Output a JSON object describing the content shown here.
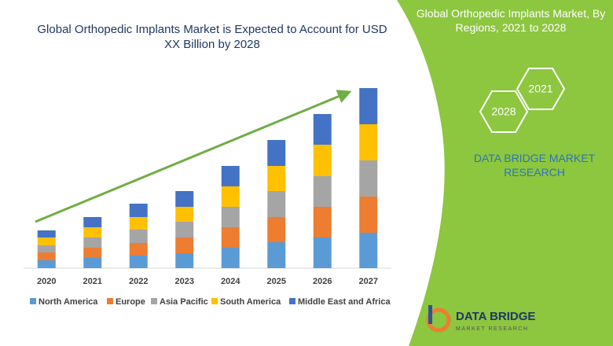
{
  "chart_data": {
    "type": "bar",
    "stacked": true,
    "title": "Global Orthopedic Implants Market is Expected to Account for USD XX Billion by 2028",
    "categories": [
      "2020",
      "2021",
      "2022",
      "2023",
      "2024",
      "2025",
      "2026",
      "2027"
    ],
    "series": [
      {
        "name": "North America",
        "color": "#5b9bd5",
        "values": [
          10,
          13,
          16,
          19,
          26,
          33,
          39,
          45
        ]
      },
      {
        "name": "Europe",
        "color": "#ed7d31",
        "values": [
          10,
          13,
          16,
          20,
          26,
          32,
          39,
          46
        ]
      },
      {
        "name": "Asia Pacific",
        "color": "#a5a5a5",
        "values": [
          9,
          13,
          17,
          20,
          26,
          33,
          39,
          46
        ]
      },
      {
        "name": "South America",
        "color": "#ffc000",
        "values": [
          10,
          13,
          16,
          19,
          26,
          32,
          40,
          46
        ]
      },
      {
        "name": "Middle East and Africa",
        "color": "#4472c4",
        "values": [
          9,
          13,
          17,
          20,
          26,
          33,
          39,
          46
        ]
      }
    ],
    "ylim": [
      0,
      250
    ],
    "trend_arrow_color": "#70ad47"
  },
  "panel": {
    "title": "Global Orthopedic Implants Market, By Regions, 2021 to 2028",
    "badges": [
      "2021",
      "2028"
    ],
    "brand": "DATA BRIDGE MARKET RESEARCH"
  },
  "logo": {
    "name": "DATA BRIDGE",
    "tagline": "MARKET RESEARCH"
  }
}
